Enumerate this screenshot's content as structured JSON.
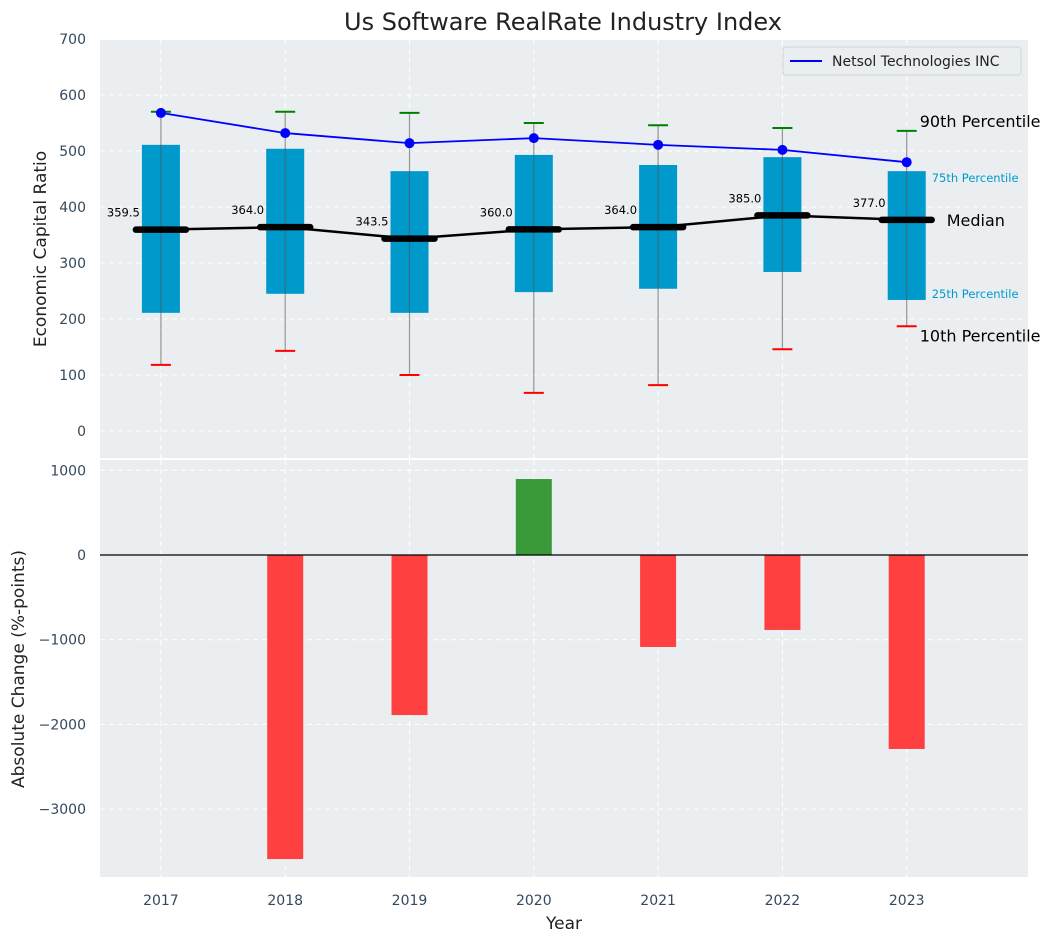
{
  "chart_data": [
    {
      "type": "box",
      "title": "Us Software RealRate Industry Index",
      "xlabel": "",
      "ylabel": "Economic Capital Ratio",
      "ylim": [
        -40,
        700
      ],
      "yticks": [
        0,
        100,
        200,
        300,
        400,
        500,
        600,
        700
      ],
      "grid": true,
      "categories": [
        "2017",
        "2018",
        "2019",
        "2020",
        "2021",
        "2022",
        "2023"
      ],
      "p10": [
        118,
        143,
        100,
        68,
        82,
        146,
        187
      ],
      "p25": [
        211,
        245,
        211,
        248,
        254,
        284,
        234
      ],
      "median": [
        359.5,
        364.0,
        343.5,
        360.0,
        364.0,
        385.0,
        377.0
      ],
      "median_labels": [
        "359.5",
        "364.0",
        "343.5",
        "360.0",
        "364.0",
        "385.0",
        "377.0"
      ],
      "p75": [
        511,
        504,
        464,
        493,
        475,
        489,
        464
      ],
      "p90": [
        570,
        570,
        568,
        550,
        546,
        541,
        536
      ],
      "series": [
        {
          "name": "Netsol Technologies INC",
          "values": [
            568,
            532,
            514,
            523,
            511,
            502,
            480
          ],
          "color": "#0000ff"
        }
      ],
      "legend": {
        "entries": [
          "Netsol Technologies INC"
        ],
        "placement": "top-right"
      },
      "annotations": {
        "p90": "90th Percentile",
        "p75": "75th Percentile",
        "median": "Median",
        "p25": "25th Percentile",
        "p10": "10th Percentile"
      },
      "colors": {
        "box": "#0099cc",
        "median": "#000000",
        "p90_cap": "#008000",
        "p10_cap": "#ff0000",
        "panel_bg": "#eaeef0"
      }
    },
    {
      "type": "bar",
      "xlabel": "Year",
      "ylabel": "Absolute Change (%-points)",
      "ylim": [
        -3800,
        1150
      ],
      "yticks": [
        -3000,
        -2000,
        -1000,
        0,
        1000
      ],
      "ytick_labels": [
        "−3000",
        "−2000",
        "−1000",
        "0",
        "1000"
      ],
      "grid": true,
      "categories": [
        "2017",
        "2018",
        "2019",
        "2020",
        "2021",
        "2022",
        "2023"
      ],
      "values": [
        0,
        -3590,
        -1890,
        897,
        -1086,
        -885,
        -2290
      ],
      "colors": {
        "positive": "#3a9a3a",
        "negative": "#ff4040"
      }
    }
  ]
}
